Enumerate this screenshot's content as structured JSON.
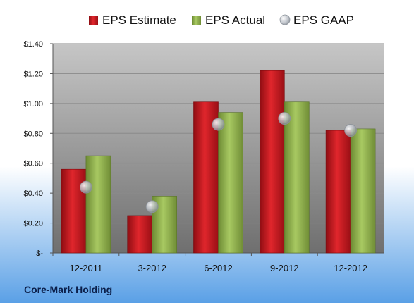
{
  "footer": {
    "company": "Core-Mark Holding"
  },
  "colors": {
    "estimate": "#c0141b",
    "actual": "#8fb04a",
    "gaap": "#b9bec6",
    "plot_top": "#c6c6c6",
    "plot_bottom": "#6f6f6f",
    "page_top": "#ffffff",
    "page_bottom": "#5aa0e6"
  },
  "chart_data": {
    "type": "bar",
    "categories": [
      "12-2011",
      "3-2012",
      "6-2012",
      "9-2012",
      "12-2012"
    ],
    "series": [
      {
        "name": "EPS Estimate",
        "kind": "bar",
        "values": [
          0.56,
          0.25,
          1.01,
          1.22,
          0.82
        ]
      },
      {
        "name": "EPS Actual",
        "kind": "bar",
        "values": [
          0.65,
          0.38,
          0.94,
          1.01,
          0.83
        ]
      },
      {
        "name": "EPS GAAP",
        "kind": "marker",
        "values": [
          0.44,
          0.31,
          0.86,
          0.9,
          0.82
        ]
      }
    ],
    "ylim": [
      0,
      1.4
    ],
    "yticks": [
      0,
      0.2,
      0.4,
      0.6,
      0.8,
      1.0,
      1.2,
      1.4
    ],
    "ytick_labels": [
      "$-",
      "$0.20",
      "$0.40",
      "$0.60",
      "$0.80",
      "$1.00",
      "$1.20",
      "$1.40"
    ],
    "grid": true,
    "legend_position": "top"
  }
}
